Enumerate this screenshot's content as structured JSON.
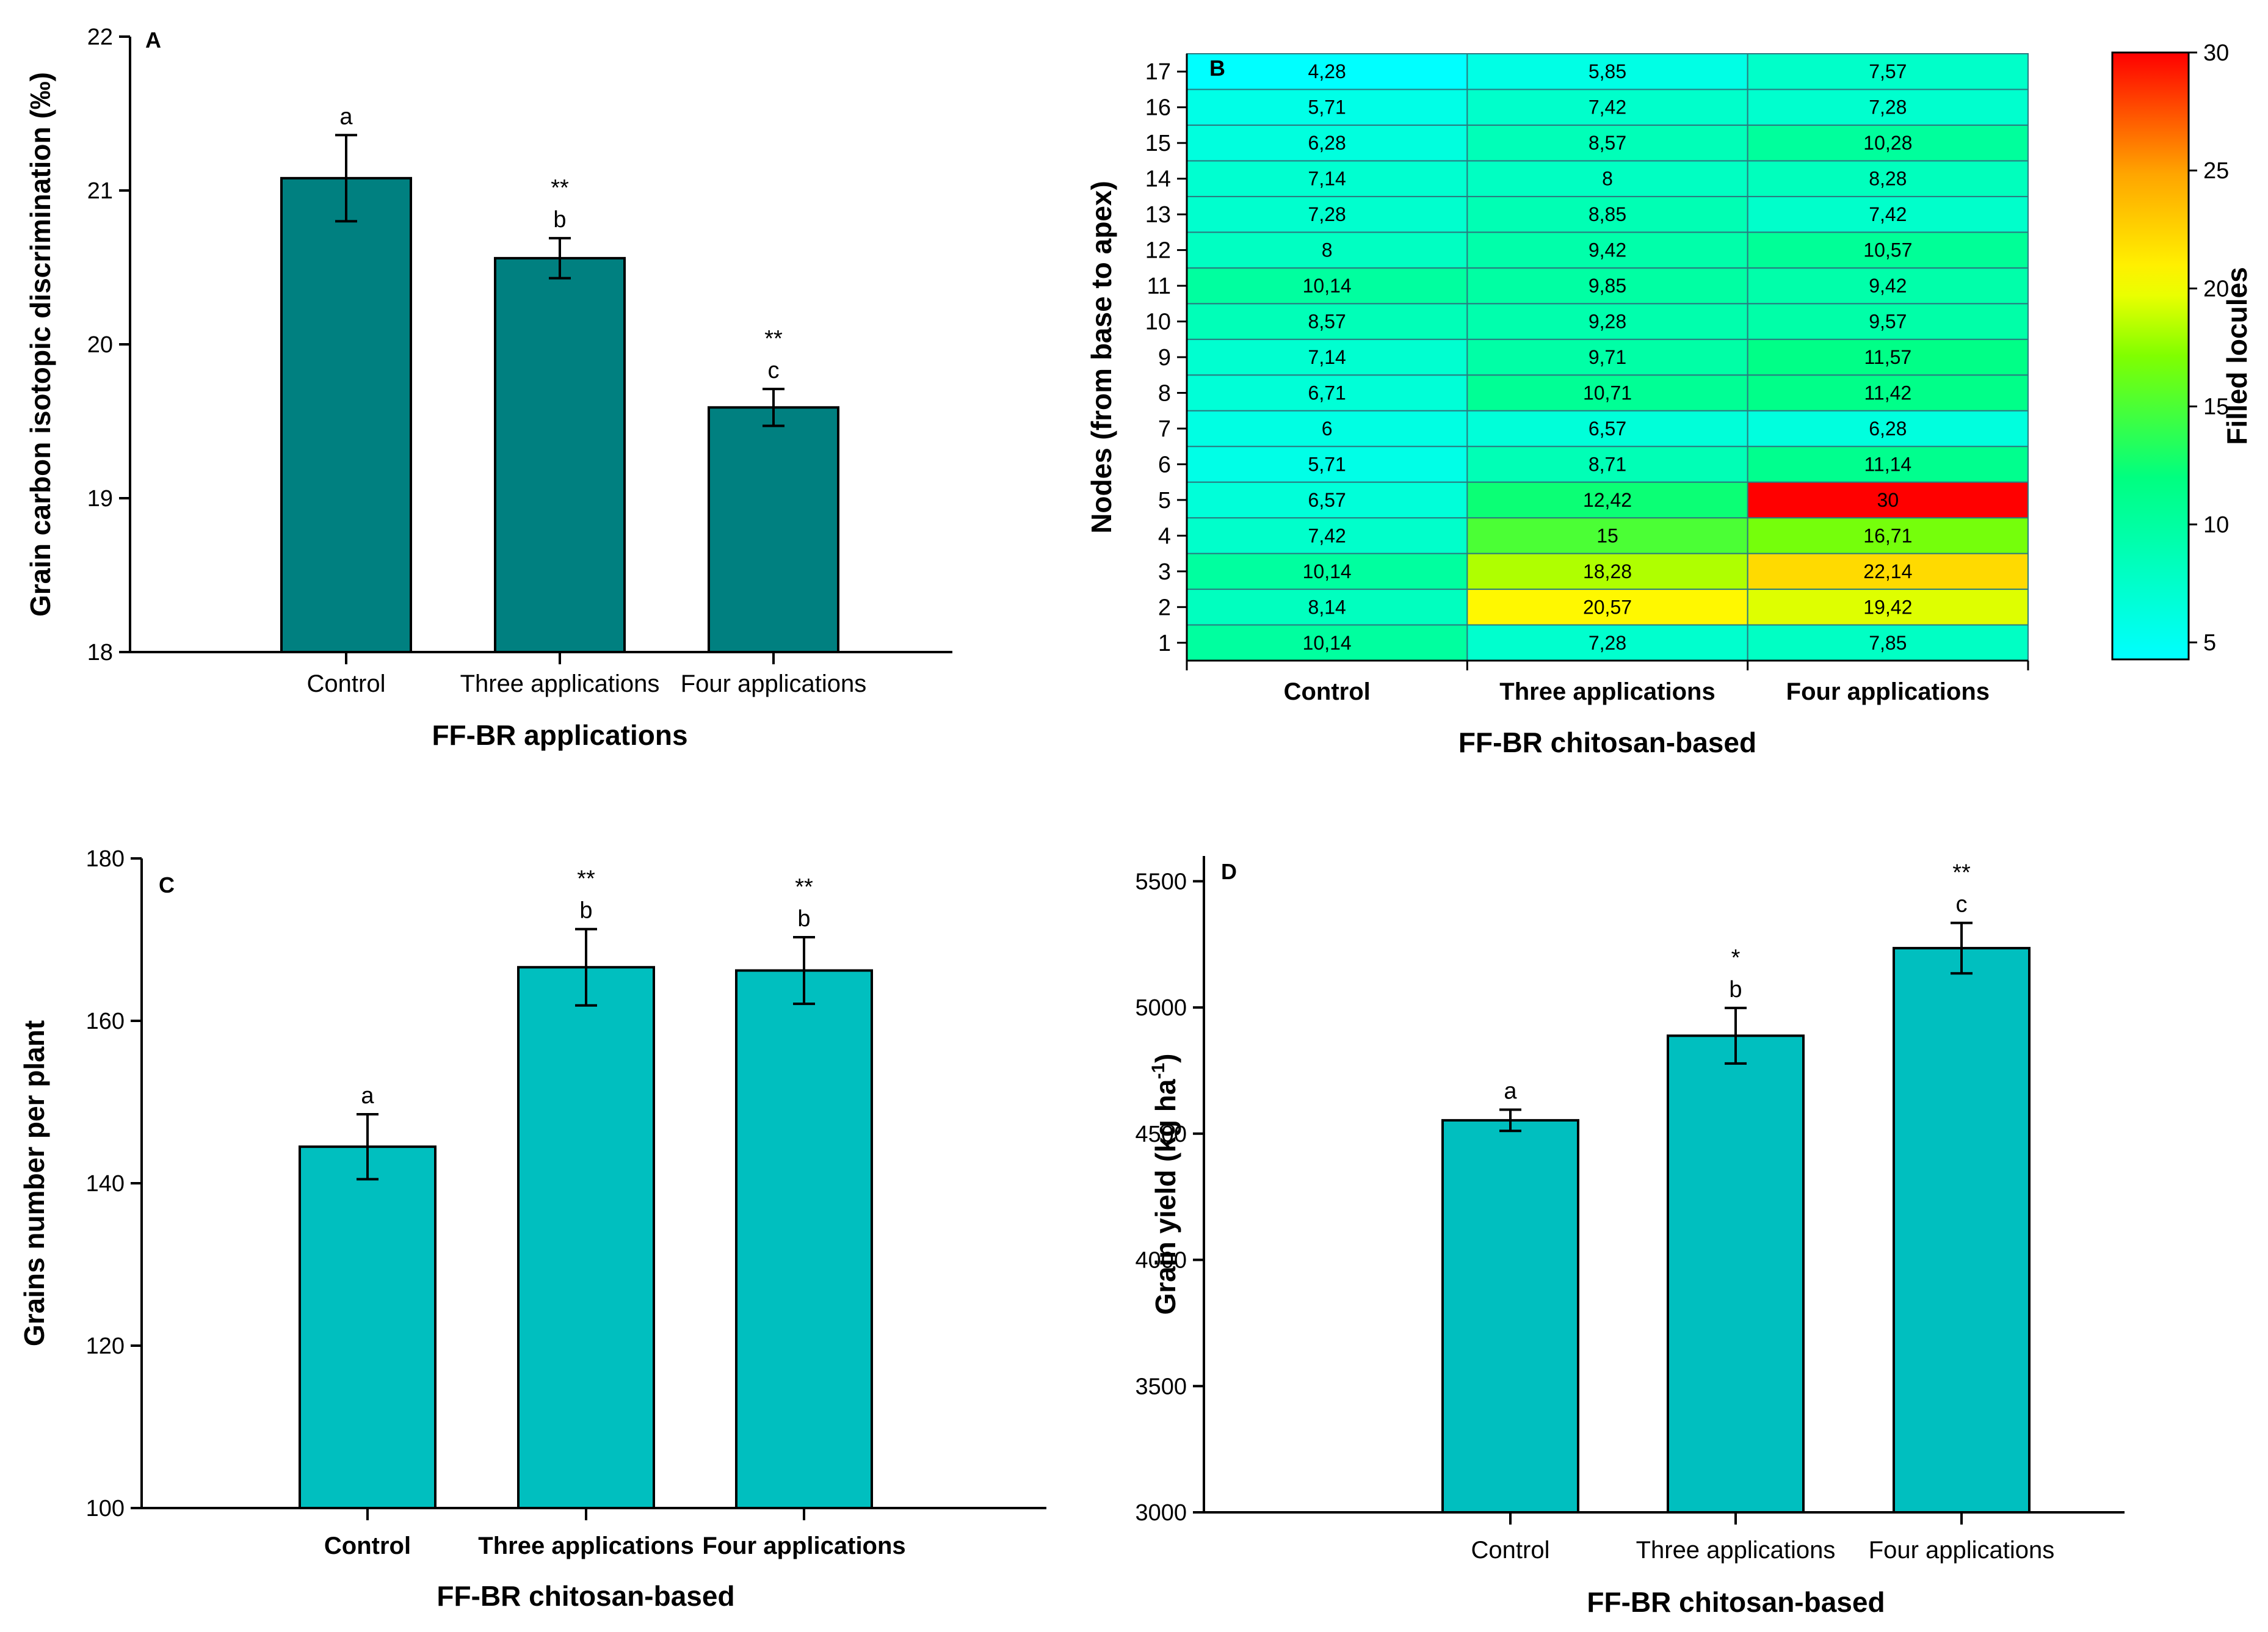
{
  "chart_data": [
    {
      "panel": "A",
      "type": "bar",
      "categories": [
        "Control",
        "Three applications",
        "Four applications"
      ],
      "values": [
        21.08,
        20.56,
        19.59
      ],
      "errors": [
        0.28,
        0.13,
        0.12
      ],
      "letters": [
        "a",
        "b",
        "c"
      ],
      "significance": [
        "",
        "**",
        "**"
      ],
      "xlabel": "FF-BR applications",
      "ylabel": "Grain carbon isotopic discrimination (‰)",
      "ylim": [
        18,
        22
      ],
      "yticks": [
        18,
        19,
        20,
        21,
        22
      ],
      "color": "#008080",
      "bold_categories": false
    },
    {
      "panel": "B",
      "type": "heatmap",
      "categories": [
        "Control",
        "Three applications",
        "Four applications"
      ],
      "rows": [
        "1",
        "2",
        "3",
        "4",
        "5",
        "6",
        "7",
        "8",
        "9",
        "10",
        "11",
        "12",
        "13",
        "14",
        "15",
        "16",
        "17"
      ],
      "values": [
        [
          "10,14",
          "7,28",
          "7,85"
        ],
        [
          "8,14",
          "20,57",
          "19,42"
        ],
        [
          "10,14",
          "18,28",
          "22,14"
        ],
        [
          "7,42",
          "15",
          "16,71"
        ],
        [
          "6,57",
          "12,42",
          "30"
        ],
        [
          "5,71",
          "8,71",
          "11,14"
        ],
        [
          "6",
          "6,57",
          "6,28"
        ],
        [
          "6,71",
          "10,71",
          "11,42"
        ],
        [
          "7,14",
          "9,71",
          "11,57"
        ],
        [
          "8,57",
          "9,28",
          "9,57"
        ],
        [
          "10,14",
          "9,85",
          "9,42"
        ],
        [
          "8",
          "9,42",
          "10,57"
        ],
        [
          "7,28",
          "8,85",
          "7,42"
        ],
        [
          "7,14",
          "8",
          "8,28"
        ],
        [
          "6,28",
          "8,57",
          "10,28"
        ],
        [
          "5,71",
          "7,42",
          "7,28"
        ],
        [
          "4,28",
          "5,85",
          "7,57"
        ]
      ],
      "xlabel": "FF-BR chitosan-based",
      "ylabel": "Nodes (from base to apex)",
      "colorbar": {
        "label": "Filled locules",
        "range": [
          4.28,
          30
        ],
        "ticks": [
          5,
          10,
          15,
          20,
          25,
          30
        ]
      }
    },
    {
      "panel": "C",
      "type": "bar",
      "categories": [
        "Control",
        "Three applications",
        "Four applications"
      ],
      "values": [
        144.5,
        166.6,
        166.2
      ],
      "errors": [
        4.0,
        4.7,
        4.1
      ],
      "letters": [
        "a",
        "b",
        "b"
      ],
      "significance": [
        "",
        "**",
        "**"
      ],
      "xlabel": "FF-BR chitosan-based",
      "ylabel": "Grains number per plant",
      "ylim": [
        100,
        180
      ],
      "yticks": [
        100,
        120,
        140,
        160,
        180
      ],
      "color": "#00BFBF",
      "bold_categories": true
    },
    {
      "panel": "D",
      "type": "bar",
      "categories": [
        "Control",
        "Three applications",
        "Four applications"
      ],
      "values": [
        4553,
        4888,
        5235
      ],
      "errors": [
        42,
        110,
        100
      ],
      "letters": [
        "a",
        "b",
        "c"
      ],
      "significance": [
        "",
        "*",
        "**"
      ],
      "xlabel": "FF-BR chitosan-based",
      "ylabel": "Grain yield (kg ha-1)",
      "ylim": [
        3000,
        5600
      ],
      "yticks": [
        3000,
        3500,
        4000,
        4500,
        5000,
        5500
      ],
      "color": "#00BFBF",
      "bold_categories": false
    }
  ]
}
